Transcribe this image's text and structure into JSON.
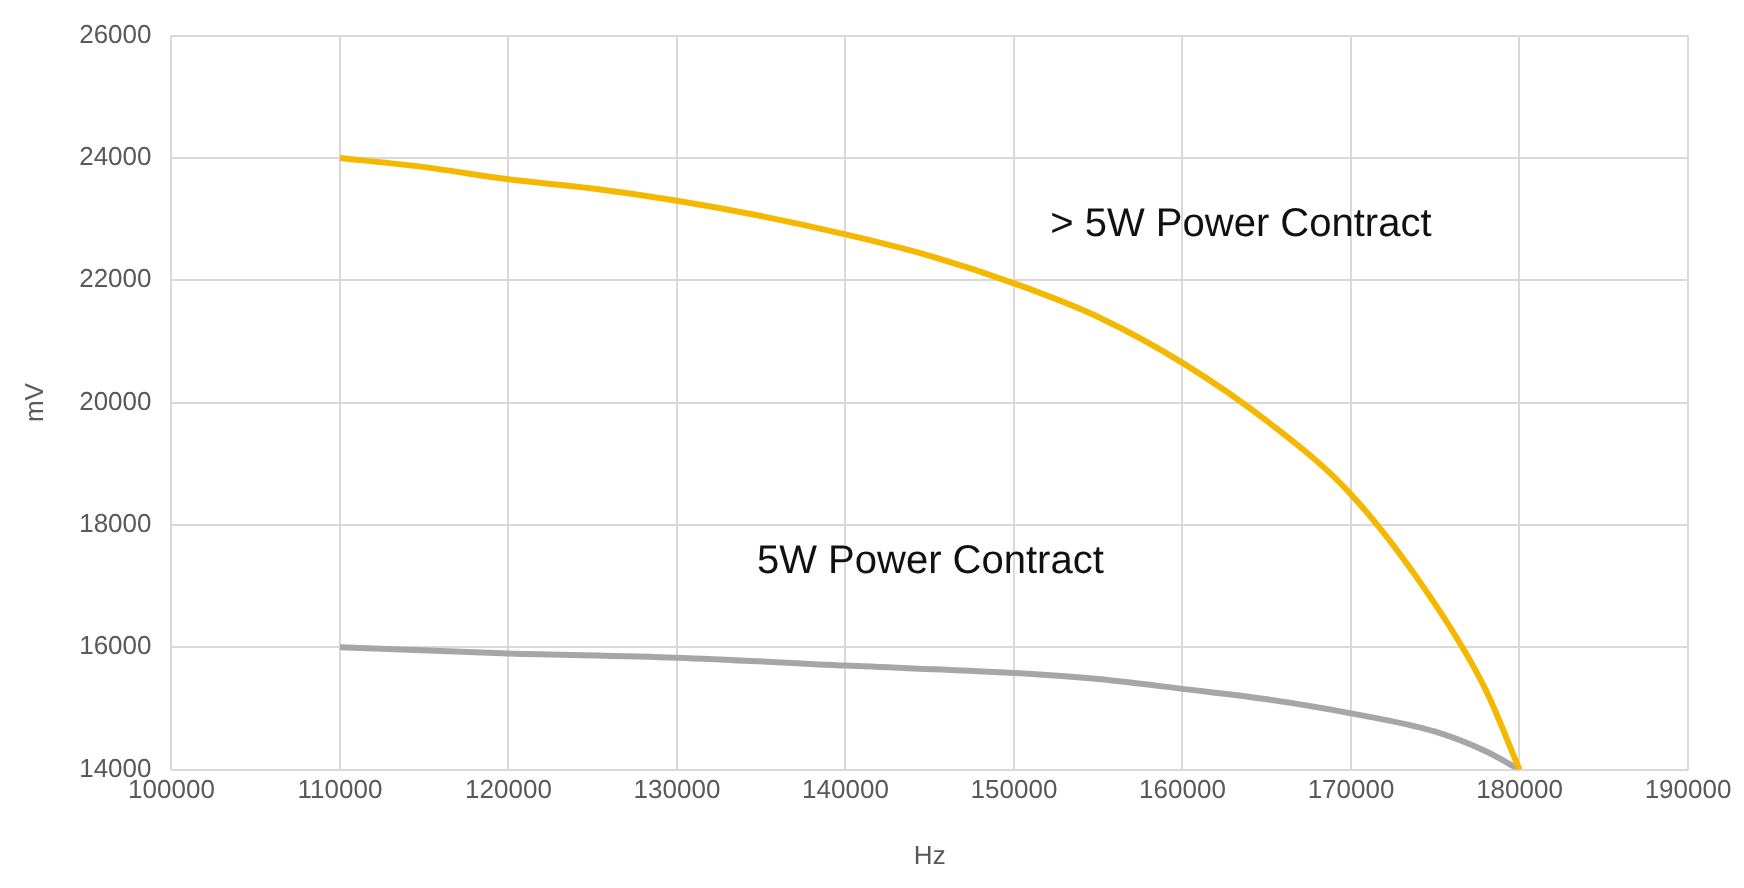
{
  "chart_data": {
    "type": "line",
    "xlabel": "Hz",
    "ylabel": "mV",
    "xlim": [
      100000,
      190000
    ],
    "xticks": [
      100000,
      110000,
      120000,
      130000,
      140000,
      150000,
      160000,
      170000,
      180000,
      190000
    ],
    "ylim": [
      14000,
      26000
    ],
    "yticks": [
      14000,
      16000,
      18000,
      20000,
      22000,
      24000,
      26000
    ],
    "grid": true,
    "legend": false,
    "marker": "none",
    "line_style": "solid",
    "series": [
      {
        "name": "> 5W Power Contract",
        "color": "#f5b800",
        "x": [
          110000,
          115000,
          120000,
          125000,
          130000,
          135000,
          140000,
          145000,
          150000,
          155000,
          160000,
          165000,
          170000,
          175000,
          178000,
          180000
        ],
        "values": [
          24000,
          23850,
          23650,
          23500,
          23300,
          23050,
          22750,
          22400,
          21950,
          21400,
          20650,
          19700,
          18500,
          16700,
          15300,
          14000
        ]
      },
      {
        "name": "5W Power Contract",
        "color": "#a6a6a6",
        "x": [
          110000,
          120000,
          130000,
          140000,
          150000,
          155000,
          160000,
          165000,
          170000,
          175000,
          178000,
          180000
        ],
        "values": [
          16000,
          15900,
          15830,
          15700,
          15580,
          15480,
          15320,
          15150,
          14920,
          14620,
          14300,
          14000
        ]
      }
    ]
  }
}
